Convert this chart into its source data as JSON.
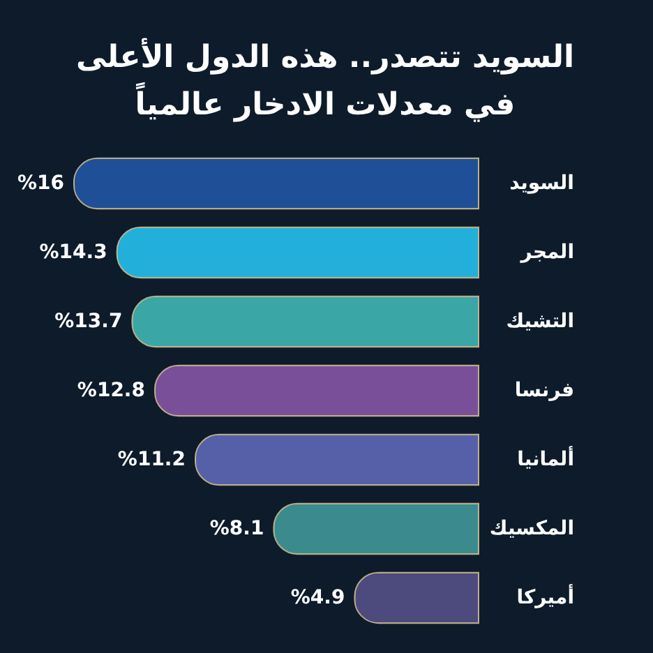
{
  "chart_data": {
    "type": "bar",
    "orientation": "horizontal",
    "title": "السويد تتصدر.. هذه الدول الأعلى\nفي معدلات الادخار عالمياً",
    "categories": [
      "السويد",
      "المجر",
      "التشيك",
      "فرنسا",
      "ألمانيا",
      "المكسيك",
      "أميركا"
    ],
    "values": [
      16,
      14.3,
      13.7,
      12.8,
      11.2,
      8.1,
      4.9
    ],
    "value_labels": [
      "%16",
      "%14.3",
      "%13.7",
      "%12.8",
      "%11.2",
      "%8.1",
      "%4.9"
    ],
    "colors": [
      "#1f4f96",
      "#22b0db",
      "#3aa6a6",
      "#7a4f9a",
      "#5560a8",
      "#3b8b8e",
      "#4d4a7e"
    ]
  }
}
